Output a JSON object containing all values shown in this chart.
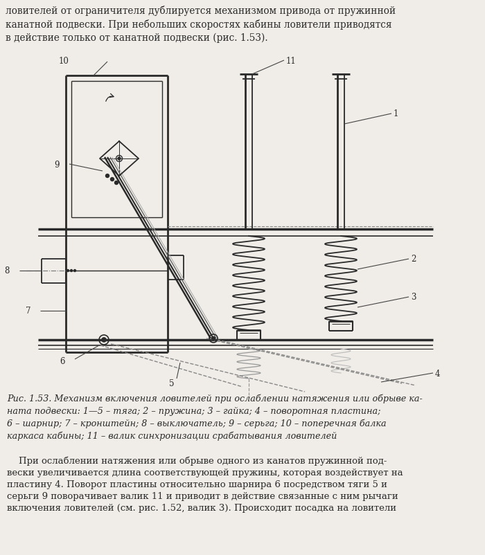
{
  "bg_color": "#f0ede8",
  "line_color": "#2a2a2a",
  "top_text": "ловителей от ограничителя дублируется механизмом привода от пружинной\nканатной подвески. При небольших скоростях кабины ловители приводятся\nв действие только от канатной подвески (рис. 1.53).",
  "caption_text": "Рис. 1.53. Механизм включения ловителей при ослаблении натяжения или обрыве ка-\nната подвески: 1—5 – тяга; 2 – пружина; 3 – гайка; 4 – поворотная пластина;\n6 – шарнир; 7 – кронштейн; 8 – выключатель; 9 – серьга; 10 – поперечная балка\nкаркаса кабины; 11 – валик синхронизации срабатывания ловителей",
  "bottom_text": "    При ослаблении натяжения или обрыве одного из канатов пружинной под-\nвески увеличивается длина соответствующей пружины, которая воздействует на\nпластину 4. Поворот пластины относительно шарнира 6 посредством тяги 5 и\nсерьги 9 поворачивает валик 11 и приводит в действие связанные с ним рычаги\nвключения ловителей (см. рис. 1.52, валик 3). Происходит посадка на ловители"
}
